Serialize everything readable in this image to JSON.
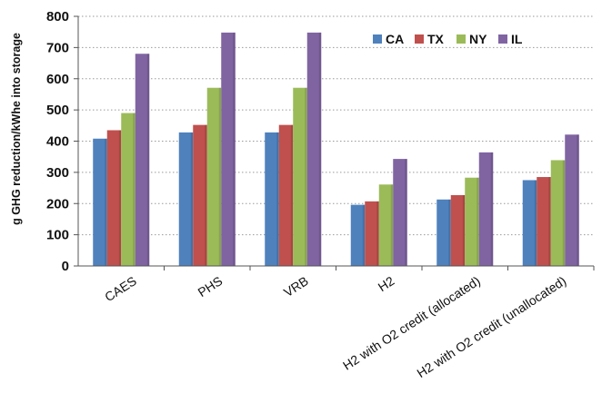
{
  "chart_data": {
    "type": "bar",
    "title": "",
    "xlabel": "",
    "ylabel": "g GHG reduction/kWhe into storage",
    "ylim": [
      0,
      800
    ],
    "yticks": [
      0,
      100,
      200,
      300,
      400,
      500,
      600,
      700,
      800
    ],
    "grid": "horizontal dotted",
    "legend_position": "top-right",
    "categories": [
      "CAES",
      "PHS",
      "VRB",
      "H2",
      "H2 with O2 credit (allocated)",
      "H2 with O2 credit (unallocated)"
    ],
    "series": [
      {
        "name": "CA",
        "color": "#4f81bd",
        "values": [
          408,
          428,
          428,
          196,
          213,
          275
        ]
      },
      {
        "name": "TX",
        "color": "#c0504d",
        "values": [
          435,
          452,
          452,
          207,
          227,
          285
        ]
      },
      {
        "name": "NY",
        "color": "#9bbb59",
        "values": [
          490,
          571,
          571,
          261,
          283,
          339
        ]
      },
      {
        "name": "IL",
        "color": "#8064a2",
        "values": [
          680,
          748,
          748,
          343,
          364,
          421
        ]
      }
    ]
  }
}
